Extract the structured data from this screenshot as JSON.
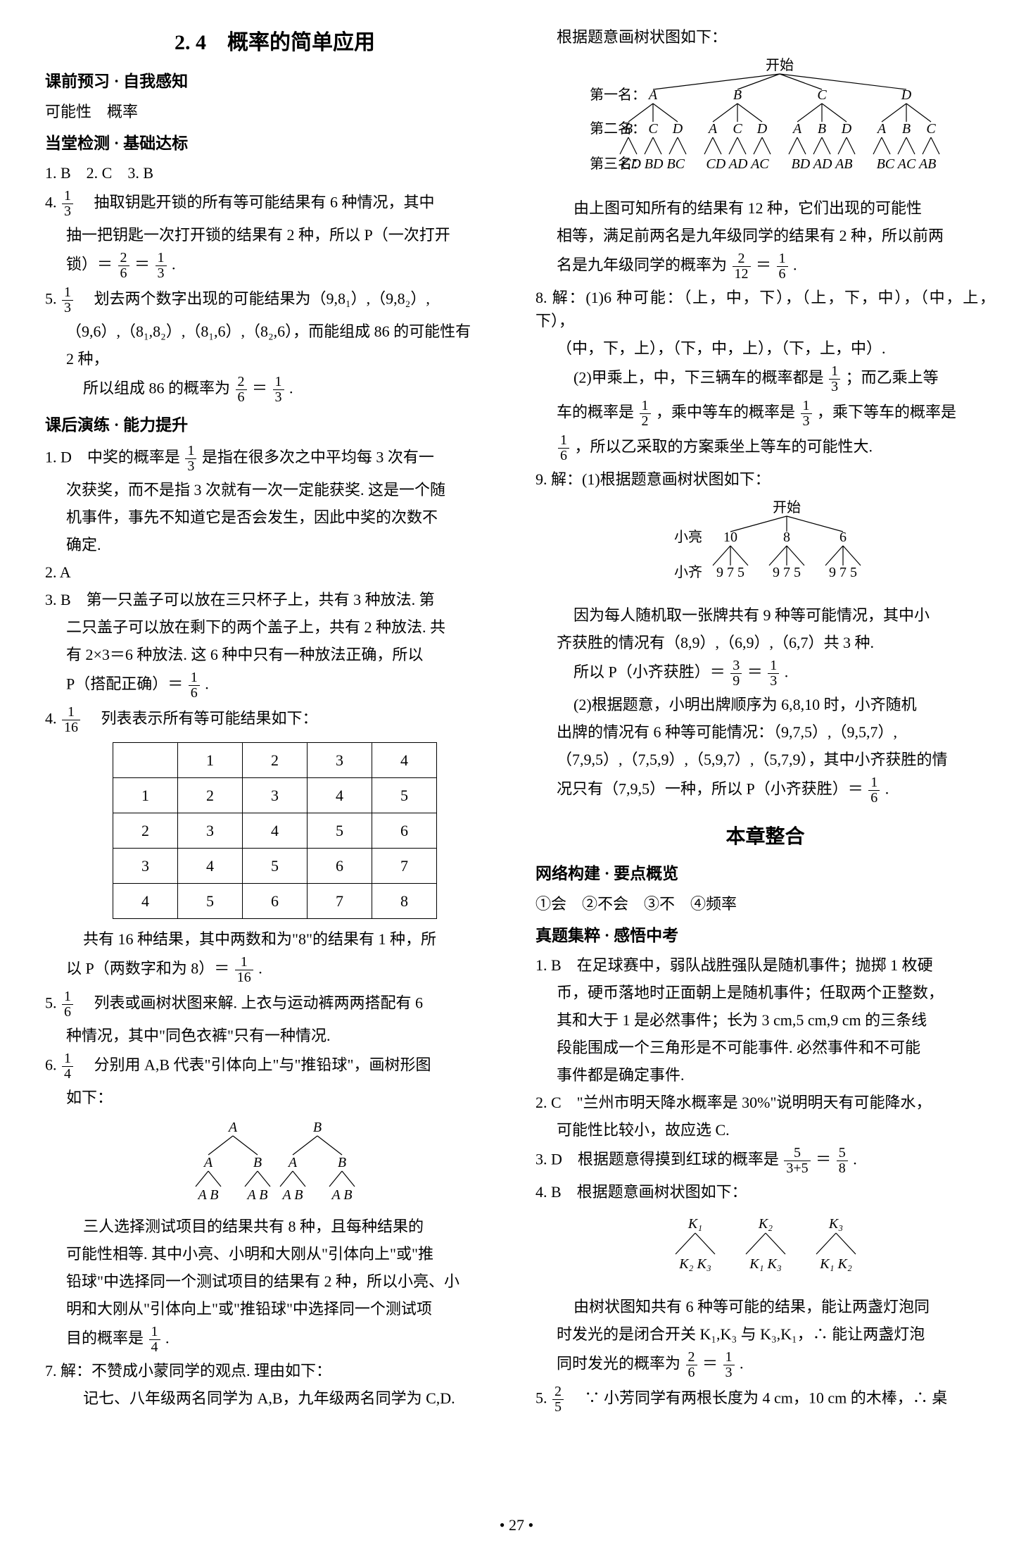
{
  "page_number": "• 27 •",
  "left": {
    "title": "2. 4　概率的简单应用",
    "sec1_head": "课前预习 · 自我感知",
    "sec1_line": "可能性　概率",
    "sec2_head": "当堂检测 · 基础达标",
    "s2_ans_line": "1. B　2. C　3. B",
    "q4_prefix": "4. ",
    "q4_frac_num": "1",
    "q4_frac_den": "3",
    "q4_body1": "　抽取钥匙开锁的所有等可能结果有 6 种情况，其中",
    "q4_body2": "抽一把钥匙一次打开锁的结果有 2 种，所以 P（一次打开",
    "q4_body3a": "锁）＝",
    "q4_f1_num": "2",
    "q4_f1_den": "6",
    "q4_body3b": "＝",
    "q4_f2_num": "1",
    "q4_f2_den": "3",
    "q4_body3c": ".",
    "q5_prefix": "5. ",
    "q5_frac_num": "1",
    "q5_frac_den": "3",
    "q5_body1": "　划去两个数字出现的可能结果为（9,8₁）,（9,8₂）,",
    "q5_body2": "（9,6）,（8₁,8₂）,（8₁,6）,（8₂,6），而能组成 86 的可能性有",
    "q5_body3": "2 种，",
    "q5_body4a": "所以组成 86 的概率为",
    "q5_f1_num": "2",
    "q5_f1_den": "6",
    "q5_body4b": "＝",
    "q5_f2_num": "1",
    "q5_f2_den": "3",
    "q5_body4c": ".",
    "sec3_head": "课后演练 · 能力提升",
    "p1_prefix": "1. D　中奖的概率是",
    "p1_frac_num": "1",
    "p1_frac_den": "3",
    "p1_body1": "是指在很多次之中平均每 3 次有一",
    "p1_body2": "次获奖，而不是指 3 次就有一次一定能获奖. 这是一个随",
    "p1_body3": "机事件，事先不知道它是否会发生，因此中奖的次数不",
    "p1_body4": "确定.",
    "p2": "2. A",
    "p3_body1": "3. B　第一只盖子可以放在三只杯子上，共有 3 种放法. 第",
    "p3_body2": "二只盖子可以放在剩下的两个盖子上，共有 2 种放法. 共",
    "p3_body3": "有 2×3＝6 种放法. 这 6 种中只有一种放法正确，所以",
    "p3_body4a": "P（搭配正确）＝",
    "p3_f_num": "1",
    "p3_f_den": "6",
    "p3_body4b": ".",
    "p4_prefix": "4. ",
    "p4_frac_num": "1",
    "p4_frac_den": "16",
    "p4_body1": "　列表表示所有等可能结果如下：",
    "table": {
      "rows": [
        [
          "",
          "1",
          "2",
          "3",
          "4"
        ],
        [
          "1",
          "2",
          "3",
          "4",
          "5"
        ],
        [
          "2",
          "3",
          "4",
          "5",
          "6"
        ],
        [
          "3",
          "4",
          "5",
          "6",
          "7"
        ],
        [
          "4",
          "5",
          "6",
          "7",
          "8"
        ]
      ]
    },
    "p4_body2": "共有 16 种结果，其中两数和为\"8\"的结果有 1 种，所",
    "p4_body3a": "以 P（两数字和为 8）＝",
    "p4_f_num": "1",
    "p4_f_den": "16",
    "p4_body3b": ".",
    "p5_prefix": "5. ",
    "p5_frac_num": "1",
    "p5_frac_den": "6",
    "p5_body1": "　列表或画树状图来解. 上衣与运动裤两两搭配有 6",
    "p5_body2": "种情况，其中\"同色衣裤\"只有一种情况.",
    "p6_prefix": "6. ",
    "p6_frac_num": "1",
    "p6_frac_den": "4",
    "p6_body1": "　分别用 A,B 代表\"引体向上\"与\"推铅球\"，画树形图",
    "p6_body2": "如下：",
    "tree1": {
      "root": [
        "A",
        "B"
      ],
      "mid": [
        "A",
        "B",
        "A",
        "B"
      ],
      "leaf": [
        "A B",
        "A B",
        "A B",
        "A B"
      ]
    },
    "p6_body3": "三人选择测试项目的结果共有 8 种，且每种结果的",
    "p6_body4": "可能性相等. 其中小亮、小明和大刚从\"引体向上\"或\"推",
    "p6_body5": "铅球\"中选择同一个测试项目的结果有 2 种，所以小亮、小",
    "p6_body6": "明和大刚从\"引体向上\"或\"推铅球\"中选择同一个测试项",
    "p6_body7a": "目的概率是",
    "p6_f_num": "1",
    "p6_f_den": "4",
    "p6_body7b": ".",
    "p7_body1": "7. 解：不赞成小蒙同学的观点. 理由如下：",
    "p7_body2": "记七、八年级两名同学为 A,B，九年级两名同学为 C,D."
  },
  "right": {
    "r1": "根据题意画树状图如下：",
    "tree2": {
      "start": "开始",
      "labels": [
        "第一名：",
        "第二名：",
        "第三名："
      ],
      "l1": [
        "A",
        "B",
        "C",
        "D"
      ],
      "l2": [
        "B C D",
        "A C D",
        "A B D",
        "A B C"
      ],
      "l3": [
        "CD BD BC",
        "CD AD AC",
        "BD AD AB",
        "BC AC AB"
      ]
    },
    "r2": "由上图可知所有的结果有 12 种，它们出现的可能性",
    "r3": "相等，满足前两名是九年级同学的结果有 2 种，所以前两",
    "r4a": "名是九年级同学的概率为",
    "r4_f1_num": "2",
    "r4_f1_den": "12",
    "r4b": "＝",
    "r4_f2_num": "1",
    "r4_f2_den": "6",
    "r4c": ".",
    "r8_1": "8. 解：(1)6 种可能：（上，中，下），（上，下，中），（中，上，下），",
    "r8_2": "（中，下，上），（下，中，上），（下，上，中）.",
    "r8_3a": "(2)甲乘上，中，下三辆车的概率都是",
    "r8_f1_num": "1",
    "r8_f1_den": "3",
    "r8_3b": "；而乙乘上等",
    "r8_4a": "车的概率是",
    "r8_f2_num": "1",
    "r8_f2_den": "2",
    "r8_4b": "，乘中等车的概率是",
    "r8_f3_num": "1",
    "r8_f3_den": "3",
    "r8_4c": "，乘下等车的概率是",
    "r8_5_f_num": "1",
    "r8_5_f_den": "6",
    "r8_5": "，所以乙采取的方案乘坐上等车的可能性大.",
    "r9_1": "9. 解：(1)根据题意画树状图如下：",
    "tree3": {
      "start": "开始",
      "label1": "小亮",
      "label2": "小齐",
      "l1": [
        "10",
        "8",
        "6"
      ],
      "l2": [
        "9 7 5",
        "9 7 5",
        "9 7 5"
      ]
    },
    "r9_2": "因为每人随机取一张牌共有 9 种等可能情况，其中小",
    "r9_3": "齐获胜的情况有（8,9）,（6,9）,（6,7）共 3 种.",
    "r9_4a": "所以 P（小齐获胜）＝",
    "r9_f1_num": "3",
    "r9_f1_den": "9",
    "r9_4b": "＝",
    "r9_f2_num": "1",
    "r9_f2_den": "3",
    "r9_4c": ".",
    "r9_5": "(2)根据题意，小明出牌顺序为 6,8,10 时，小齐随机",
    "r9_6": "出牌的情况有 6 种等可能情况：（9,7,5）,（9,5,7）,",
    "r9_7": "（7,9,5）,（7,5,9）,（5,9,7）,（5,7,9），其中小齐获胜的情",
    "r9_8a": "况只有（7,9,5）一种，所以 P（小齐获胜）＝",
    "r9_f3_num": "1",
    "r9_f3_den": "6",
    "r9_8b": ".",
    "title_sub": "本章整合",
    "secA_head": "网络构建 · 要点概览",
    "secA_line": "①会　②不会　③不　④频率",
    "secB_head": "真题集粹 · 感悟中考",
    "b1_1": "1. B　在足球赛中，弱队战胜强队是随机事件；抛掷 1 枚硬",
    "b1_2": "币，硬币落地时正面朝上是随机事件；任取两个正整数，",
    "b1_3": "其和大于 1 是必然事件；长为 3 cm,5 cm,9 cm 的三条线",
    "b1_4": "段能围成一个三角形是不可能事件. 必然事件和不可能",
    "b1_5": "事件都是确定事件.",
    "b2_1": "2. C　\"兰州市明天降水概率是 30%\"说明明天有可能降水，",
    "b2_2": "可能性比较小，故应选 C.",
    "b3a": "3. D　根据题意得摸到红球的概率是",
    "b3_f1_num": "5",
    "b3_f1_den": "3+5",
    "b3b": "＝",
    "b3_f2_num": "5",
    "b3_f2_den": "8",
    "b3c": ".",
    "b4_1": "4. B　根据题意画树状图如下：",
    "tree4": {
      "l1": [
        "K₁",
        "K₂",
        "K₃"
      ],
      "l2": [
        "K₂ K₃",
        "K₁ K₃",
        "K₁ K₂"
      ]
    },
    "b4_2": "由树状图知共有 6 种等可能的结果，能让两盏灯泡同",
    "b4_3": "时发光的是闭合开关 K₁,K₃ 与 K₃,K₁，∴ 能让两盏灯泡",
    "b4_4a": "同时发光的概率为",
    "b4_f1_num": "2",
    "b4_f1_den": "6",
    "b4_4b": "＝",
    "b4_f2_num": "1",
    "b4_f2_den": "3",
    "b4_4c": ".",
    "b5_prefix": "5. ",
    "b5_f_num": "2",
    "b5_f_den": "5",
    "b5_body": "　∵ 小芳同学有两根长度为 4 cm，10 cm 的木棒，∴ 桌"
  }
}
